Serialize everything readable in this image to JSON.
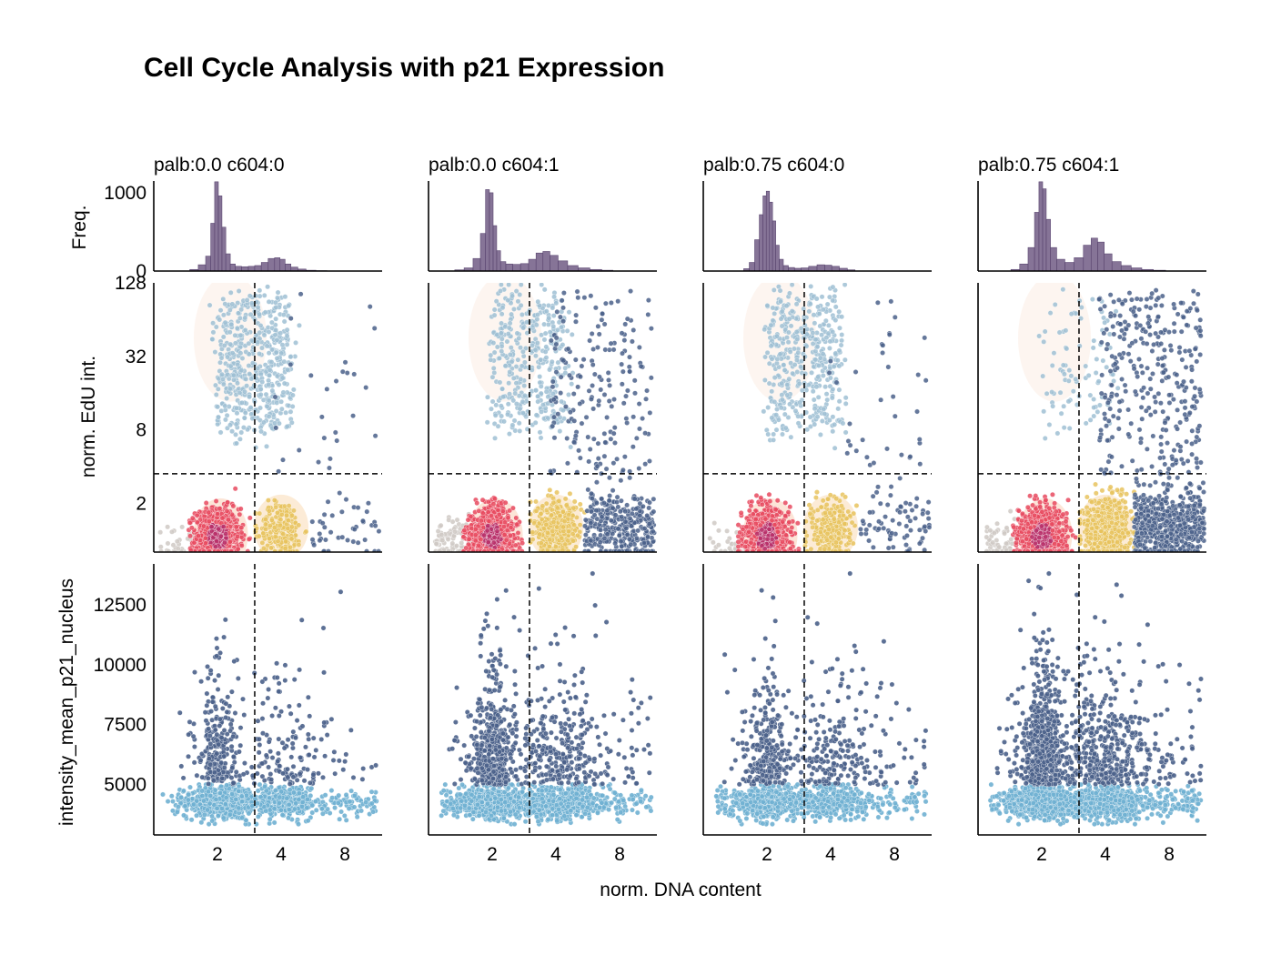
{
  "chart_data": {
    "type": "scatter",
    "title": "Cell Cycle Analysis with p21 Expression",
    "xlabel": "norm. DNA content",
    "x_scale": "log2",
    "xlim": [
      1,
      12
    ],
    "x_ticks": [
      "2",
      "4",
      "8"
    ],
    "hist_ylabel": "Freq.",
    "hist_ylim": [
      0,
      1150
    ],
    "hist_ticks": [
      "0",
      "1000"
    ],
    "edu_ylabel": "norm. EdU int.",
    "edu_scale": "log2",
    "edu_ylim": [
      0.8,
      128
    ],
    "edu_ticks": [
      "2",
      "8",
      "32",
      "128"
    ],
    "edu_threshold": 3.5,
    "dna_threshold": 3.0,
    "p21_ylabel": "intensity_mean_p21_nucleus",
    "p21_ylim": [
      2900,
      14200
    ],
    "p21_ticks": [
      "5000",
      "7500",
      "10000",
      "12500"
    ],
    "p21_threshold": 5000,
    "grid": false,
    "colors": {
      "hist": "#6b5580",
      "g1": "#e84a5f",
      "g1_dark": "#b8306a",
      "s": "#9fbfd4",
      "g2": "#e8c35e",
      "m": "#4a6089",
      "sub_g1": "#cfc9c4",
      "p21_low": "#6fb0d2",
      "p21_high": "#4a6089",
      "threshold": "#000000"
    },
    "panels": [
      {
        "title": "palb:0.0 c604:0",
        "hist": {
          "x": [
            1.55,
            1.7,
            1.82,
            1.9,
            1.98,
            2.06,
            2.14,
            2.24,
            2.36,
            2.5,
            2.7,
            2.9,
            3.1,
            3.35,
            3.6,
            3.85,
            4.05,
            4.3,
            4.6,
            5.0,
            5.5,
            6.2
          ],
          "counts": [
            20,
            80,
            190,
            610,
            1140,
            960,
            560,
            220,
            90,
            60,
            55,
            60,
            70,
            110,
            160,
            170,
            150,
            90,
            50,
            25,
            10,
            5
          ]
        },
        "counts": {
          "g1": 900,
          "s": 520,
          "g2": 240,
          "m": 70,
          "sub_g1": 40
        },
        "p21_high_fraction": 0.22
      },
      {
        "title": "palb:0.0 c604:1",
        "hist": {
          "x": [
            1.4,
            1.55,
            1.7,
            1.82,
            1.9,
            1.98,
            2.06,
            2.14,
            2.24,
            2.4,
            2.6,
            2.85,
            3.1,
            3.35,
            3.6,
            3.9,
            4.3,
            4.8,
            5.4,
            6.2,
            7.0
          ],
          "counts": [
            15,
            40,
            160,
            480,
            1040,
            1000,
            580,
            260,
            120,
            90,
            85,
            95,
            150,
            230,
            250,
            200,
            130,
            70,
            40,
            20,
            10
          ]
        },
        "counts": {
          "g1": 1000,
          "s": 380,
          "g2": 440,
          "m": 520,
          "sub_g1": 120
        },
        "p21_high_fraction": 0.34
      },
      {
        "title": "palb:0.75 c604:0",
        "hist": {
          "x": [
            1.6,
            1.7,
            1.8,
            1.88,
            1.95,
            2.02,
            2.09,
            2.16,
            2.24,
            2.33,
            2.45,
            2.6,
            2.8,
            3.0,
            3.3,
            3.6,
            3.9,
            4.2,
            4.6,
            5.0
          ],
          "counts": [
            30,
            110,
            400,
            720,
            960,
            1020,
            880,
            640,
            330,
            150,
            70,
            45,
            35,
            40,
            60,
            80,
            75,
            60,
            35,
            15
          ]
        },
        "counts": {
          "g1": 900,
          "s": 430,
          "g2": 280,
          "m": 110,
          "sub_g1": 30
        },
        "p21_high_fraction": 0.3
      },
      {
        "title": "palb:0.75 c604:1",
        "hist": {
          "x": [
            1.5,
            1.65,
            1.8,
            1.9,
            1.98,
            2.06,
            2.14,
            2.26,
            2.45,
            2.7,
            3.0,
            3.3,
            3.55,
            3.8,
            4.1,
            4.5,
            5.0,
            5.6,
            6.3,
            7.2
          ],
          "counts": [
            20,
            90,
            300,
            750,
            1140,
            1050,
            660,
            300,
            150,
            110,
            170,
            330,
            420,
            370,
            220,
            120,
            70,
            40,
            20,
            10
          ]
        },
        "counts": {
          "g1": 1100,
          "s": 90,
          "g2": 780,
          "m": 900,
          "sub_g1": 80
        },
        "p21_high_fraction": 0.38
      }
    ]
  }
}
